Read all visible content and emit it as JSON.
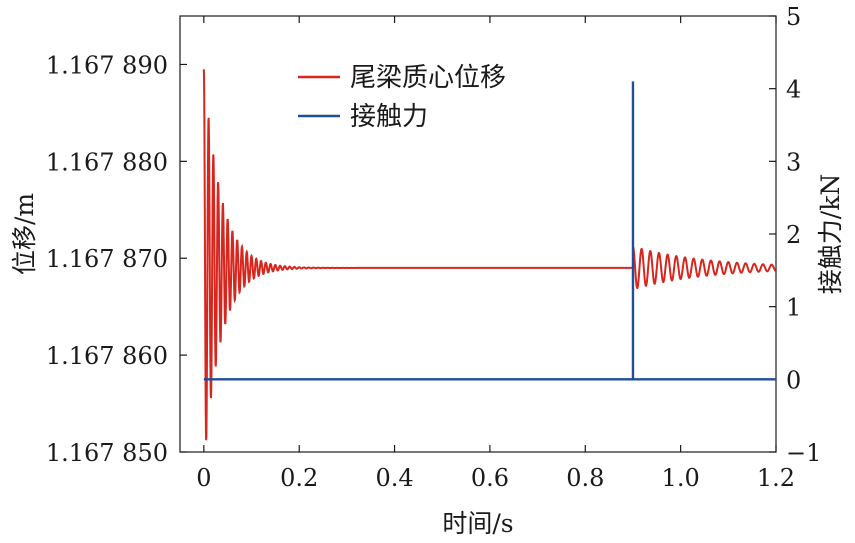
{
  "chart_data": {
    "type": "line",
    "xlabel": "时间/s",
    "ylabel_left": "位移/m",
    "ylabel_right": "接触力/kN",
    "xlim": [
      -0.05,
      1.2
    ],
    "ylim_left": [
      1.16785,
      1.167895
    ],
    "ylim_right": [
      -1,
      5
    ],
    "x_ticks": [
      "0",
      "0.2",
      "0.4",
      "0.6",
      "0.8",
      "1.0",
      "1.2"
    ],
    "y_left_ticks": [
      "1.167 850",
      "1.167 860",
      "1.167 870",
      "1.167 880",
      "1.167 890"
    ],
    "y_right_ticks": [
      "−1",
      "0",
      "1",
      "2",
      "3",
      "4",
      "5"
    ],
    "legend_position": "top-center",
    "colors": {
      "displacement": "#d7261e",
      "force": "#1f4e9c"
    },
    "series": [
      {
        "name": "尾梁质心位移",
        "axis": "left",
        "color": "#d7261e",
        "equilibrium": 1.167869,
        "response": [
          {
            "t_start": 0.0,
            "initial_amplitude": 2.05e-05,
            "decay_rate": 28,
            "frequency": 100
          },
          {
            "t_start": 0.9,
            "initial_amplitude": 2.2e-06,
            "decay_rate": 6.5,
            "frequency": 55
          }
        ]
      },
      {
        "name": "接触力",
        "axis": "right",
        "color": "#1f4e9c",
        "x": [
          0,
          0.9,
          0.9,
          0.9,
          0.9,
          1.2
        ],
        "y": [
          0,
          0,
          4.1,
          4.1,
          0,
          0
        ]
      }
    ]
  }
}
